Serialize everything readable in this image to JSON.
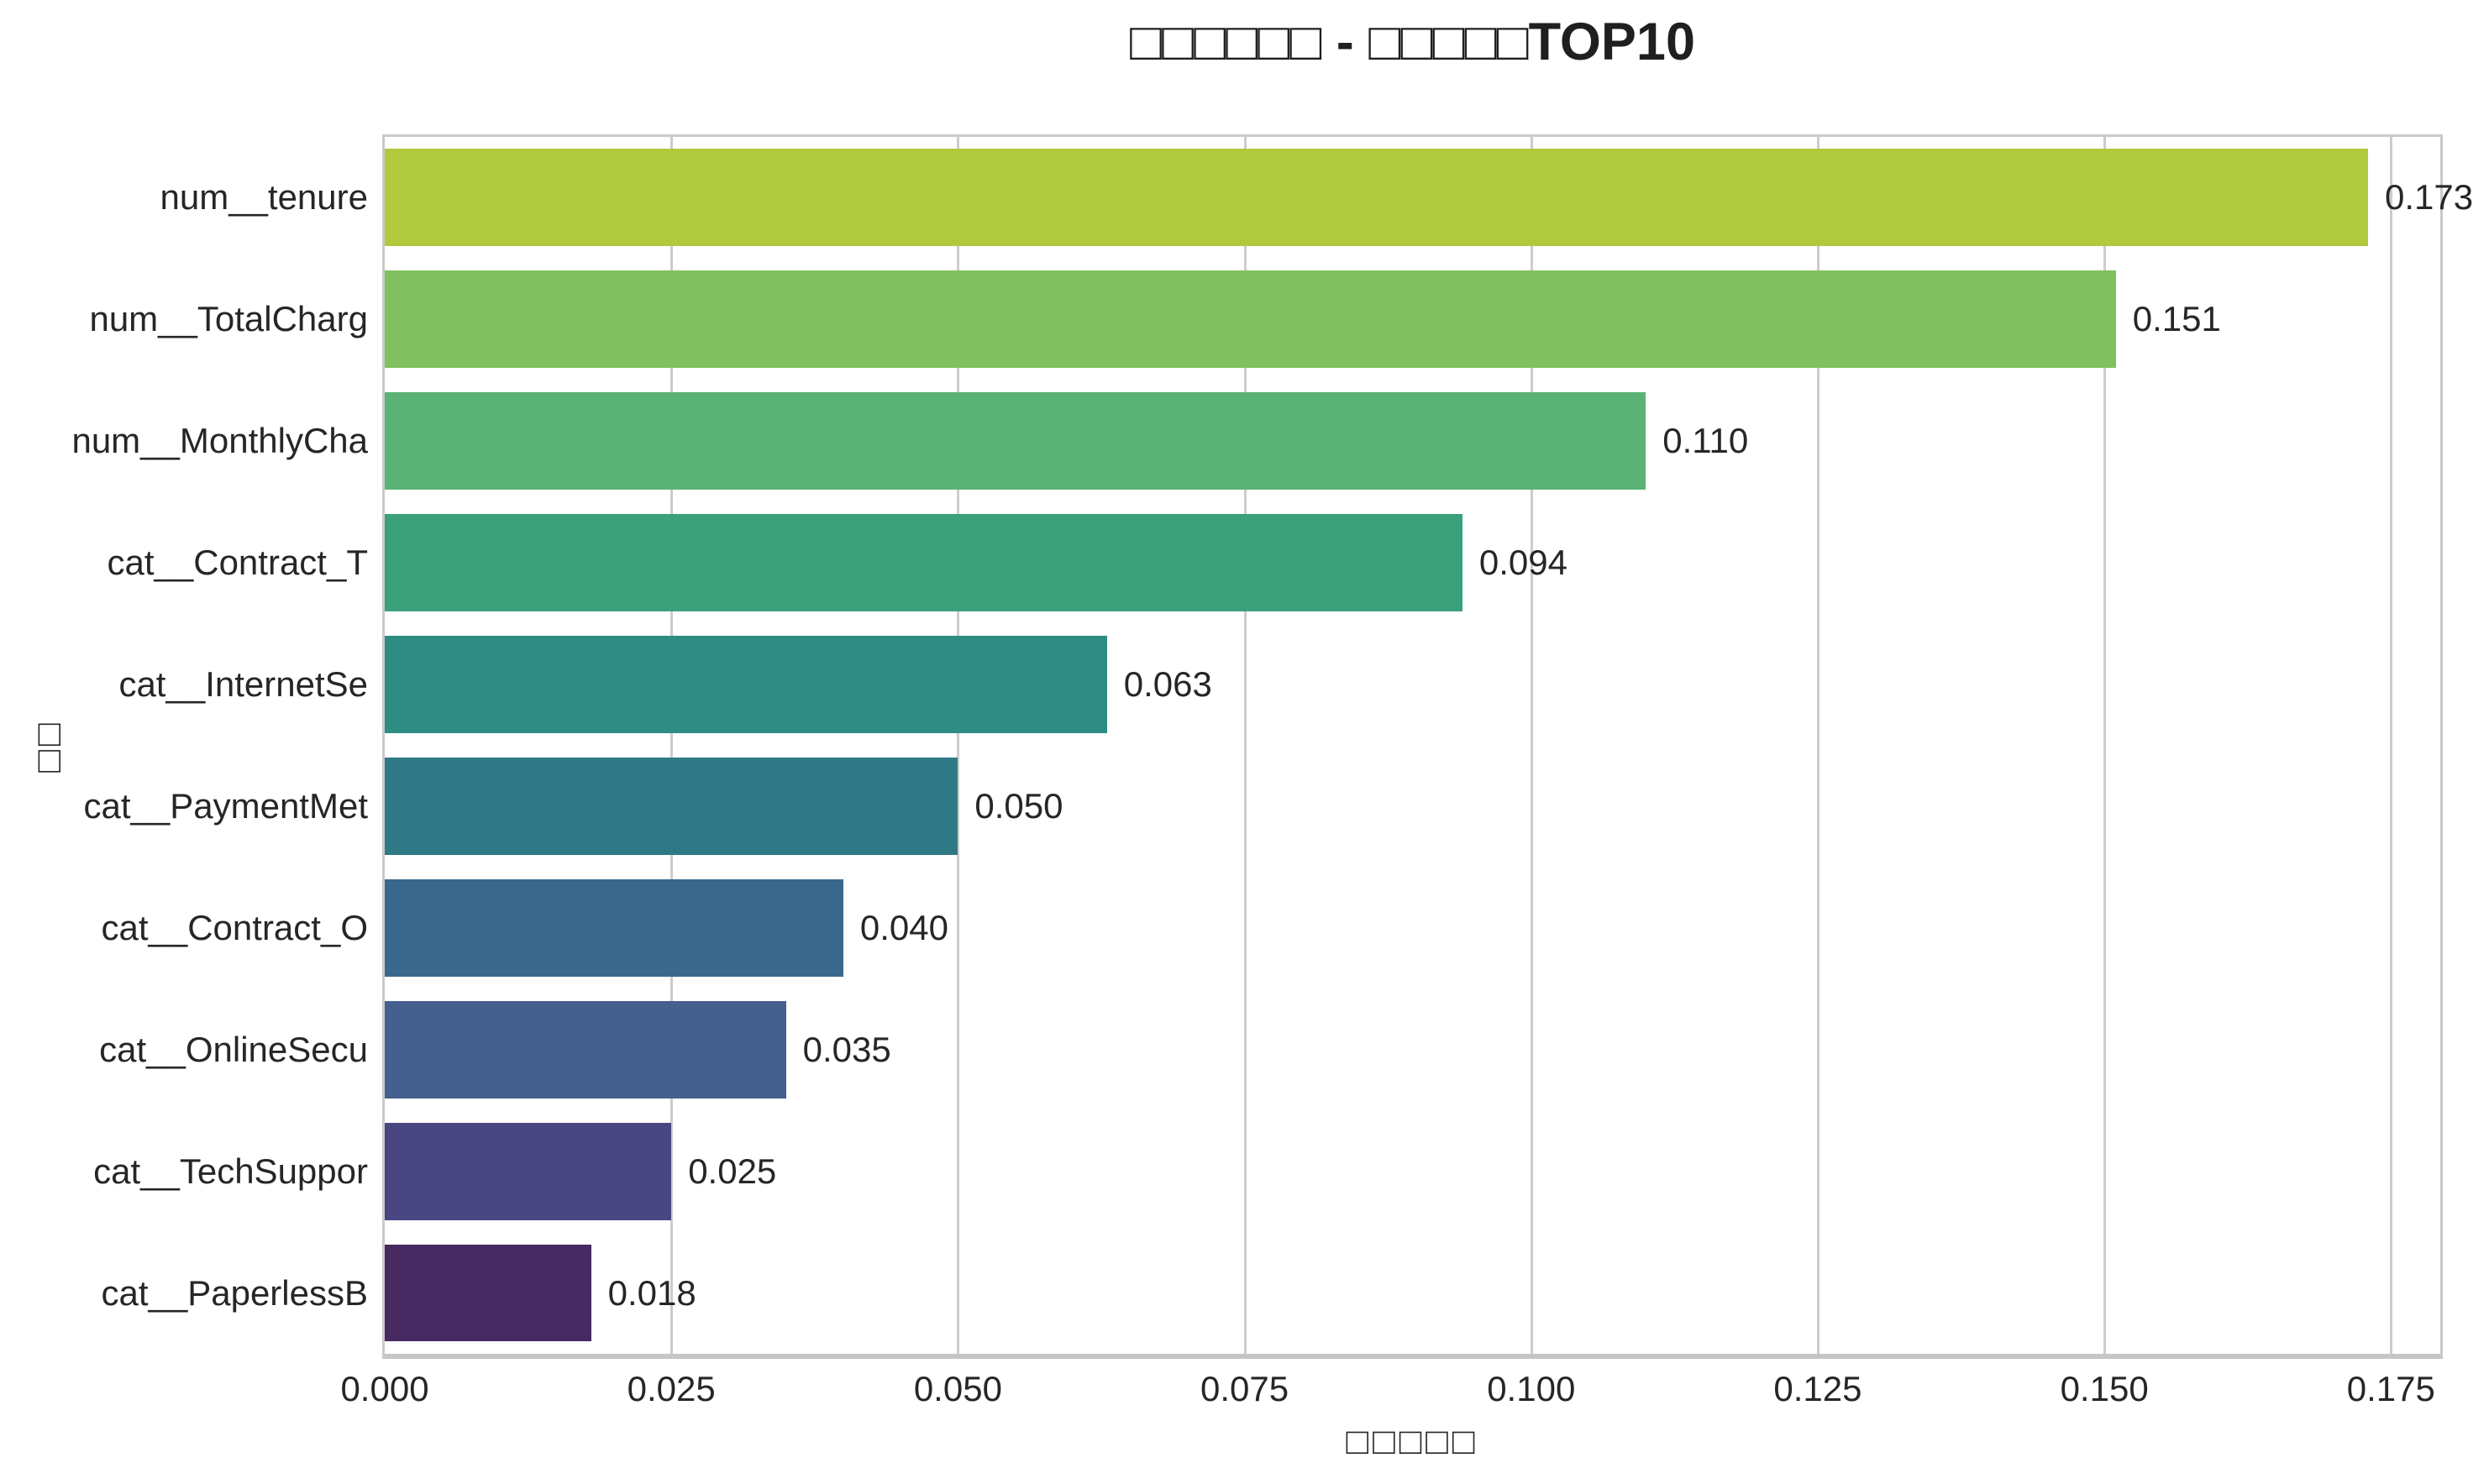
{
  "chart_data": {
    "type": "bar",
    "orientation": "horizontal",
    "title": "□□□□□□ - □□□□□TOP10",
    "title_segments": [
      {
        "text": "□□□□□□",
        "bold": false
      },
      {
        "text": " - ",
        "bold": true
      },
      {
        "text": "□□□□□",
        "bold": false
      },
      {
        "text": "TOP10",
        "bold": true
      }
    ],
    "xlabel": "□□□□□",
    "ylabel": "□□",
    "categories": [
      "num__tenure",
      "num__TotalCharg",
      "num__MonthlyCha",
      "cat__Contract_T",
      "cat__InternetSe",
      "cat__PaymentMet",
      "cat__Contract_O",
      "cat__OnlineSecu",
      "cat__TechSuppor",
      "cat__PaperlessB"
    ],
    "values": [
      0.173,
      0.151,
      0.11,
      0.094,
      0.063,
      0.05,
      0.04,
      0.035,
      0.025,
      0.018
    ],
    "value_labels": [
      "0.173",
      "0.151",
      "0.110",
      "0.094",
      "0.063",
      "0.050",
      "0.040",
      "0.035",
      "0.025",
      "0.018"
    ],
    "bar_colors": [
      "#b1c93c",
      "#80c05e",
      "#5ab374",
      "#3aa17b",
      "#2e8c82",
      "#2f7987",
      "#3a688d",
      "#45608f",
      "#4a4682",
      "#462a61"
    ],
    "x_tick_labels": [
      "0.000",
      "0.025",
      "0.050",
      "0.075",
      "0.100",
      "0.125",
      "0.150",
      "0.175"
    ],
    "x_tick_values": [
      0,
      0.025,
      0.05,
      0.075,
      0.1,
      0.125,
      0.15,
      0.175
    ],
    "xlim": [
      0,
      0.1793
    ],
    "grid": "vertical",
    "legend": "none",
    "colors": {
      "grid": "#cccccc",
      "axes_border": "#cacaca",
      "text": "#262626",
      "background": "#ffffff"
    }
  }
}
